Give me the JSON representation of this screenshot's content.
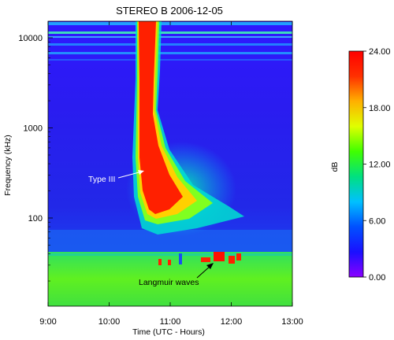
{
  "chart_data": {
    "type": "heatmap",
    "title": "STEREO B 2006-12-05",
    "xlabel": "Time (UTC - Hours)",
    "ylabel": "Frequency (kHz)",
    "x_ticks": [
      "9:00",
      "10:00",
      "11:00",
      "12:00",
      "13:00"
    ],
    "x_range_hours": [
      9,
      13
    ],
    "y_scale": "log",
    "y_ticks": [
      "100",
      "1000",
      "10000"
    ],
    "colorbar": {
      "label": "dB",
      "range": [
        0,
        24
      ],
      "ticks": [
        "0.00",
        "6.00",
        "12.00",
        "18.00",
        "24.00"
      ],
      "colors": [
        "#8a00ff",
        "#1a10ff",
        "#0050ff",
        "#00c0ff",
        "#00e080",
        "#40ff00",
        "#e0ff00",
        "#ffb000",
        "#ff3000",
        "#ff0000"
      ]
    },
    "annotations": [
      {
        "text": "Type III"
      },
      {
        "text": "Langmuir waves"
      }
    ]
  }
}
